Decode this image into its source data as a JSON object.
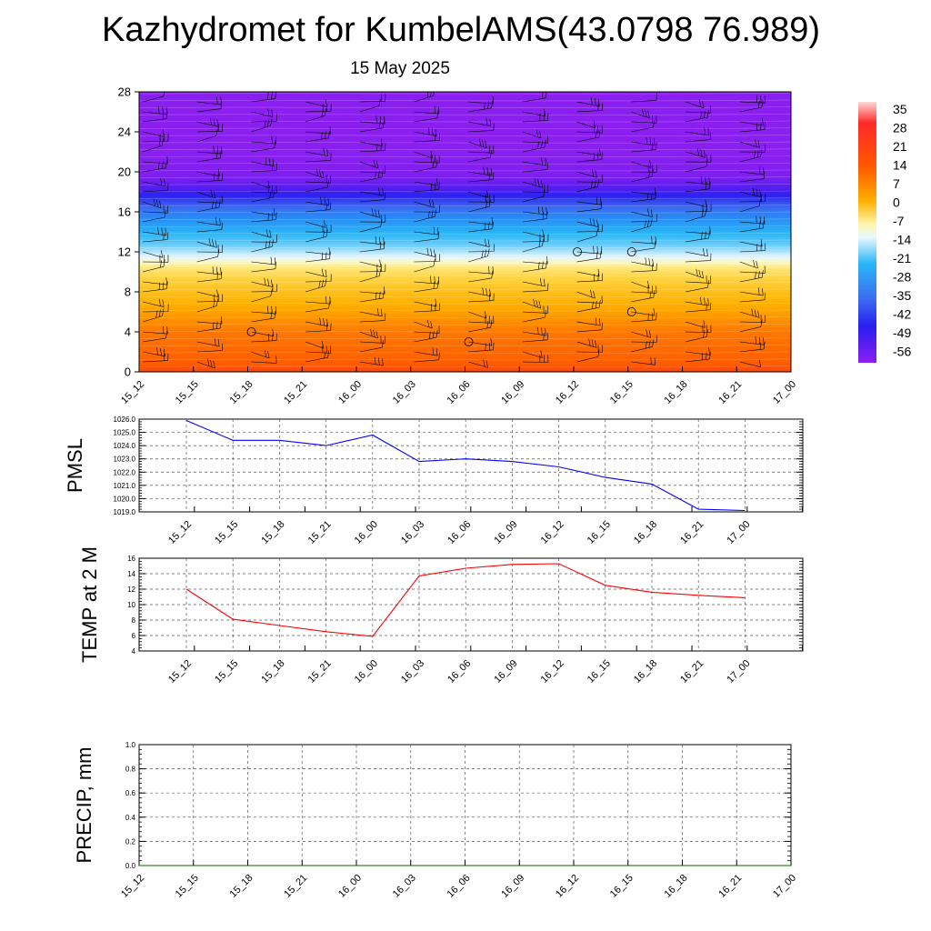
{
  "title": "Kazhydromet for KumbelAMS(43.0798 76.989)",
  "date": "15 May 2025",
  "chart_data": [
    {
      "type": "heatmap",
      "title": "",
      "xlabel": "",
      "ylabel": "",
      "x_tick_labels": [
        "15_12",
        "15_15",
        "15_18",
        "15_21",
        "16_00",
        "16_03",
        "16_06",
        "16_09",
        "16_12",
        "16_15",
        "16_18",
        "16_21",
        "17_00"
      ],
      "y_ticks": [
        0,
        4,
        8,
        12,
        16,
        20,
        24,
        28
      ],
      "ylim": [
        0,
        28
      ],
      "colorbar_labels": [
        "35",
        "28",
        "21",
        "14",
        "7",
        "0",
        "-7",
        "-14",
        "-21",
        "-28",
        "-35",
        "-42",
        "-49",
        "-56"
      ],
      "colorbar_range": [
        -60,
        38
      ],
      "temperature_profile": [
        {
          "level": 0,
          "value": 24
        },
        {
          "level": 1,
          "value": 20
        },
        {
          "level": 4,
          "value": 14
        },
        {
          "level": 8,
          "value": 4
        },
        {
          "level": 10.5,
          "value": -4
        },
        {
          "level": 11.5,
          "value": -14
        },
        {
          "level": 13,
          "value": -24
        },
        {
          "level": 16,
          "value": -38
        },
        {
          "level": 18,
          "value": -52
        },
        {
          "level": 20,
          "value": -58
        },
        {
          "level": 22,
          "value": -60
        },
        {
          "level": 28,
          "value": -60
        }
      ],
      "wind_barbs": "present at every time and level",
      "calm_markers": [
        {
          "x": "15_18",
          "level": 4
        },
        {
          "x": "16_06",
          "level": 3
        },
        {
          "x": "16_12",
          "level": 12
        },
        {
          "x": "16_15",
          "level": 12
        },
        {
          "x": "16_15",
          "level": 6
        }
      ],
      "colors": {
        "line": "#000000"
      }
    },
    {
      "type": "line",
      "ylabel": "PMSL",
      "x": [
        "15_12",
        "15_15",
        "15_18",
        "15_21",
        "16_00",
        "16_03",
        "16_06",
        "16_09",
        "16_12",
        "16_15",
        "16_18",
        "16_21",
        "17_00"
      ],
      "y_ticks": [
        "1026.0",
        "1025.0",
        "1024.0",
        "1023.0",
        "1022.0",
        "1021.0",
        "1020.0",
        "1019.0"
      ],
      "ylim": [
        1019,
        1026
      ],
      "grid": true,
      "series": [
        {
          "values": [
            1025.9,
            1024.4,
            1024.4,
            1024.0,
            1024.8,
            1022.8,
            1023.0,
            1022.8,
            1022.4,
            1021.6,
            1021.1,
            1019.2,
            1019.1
          ],
          "color": "#0000ff"
        }
      ]
    },
    {
      "type": "line",
      "ylabel": "TEMP at 2 M",
      "x": [
        "15_12",
        "15_15",
        "15_18",
        "15_21",
        "16_00",
        "16_03",
        "16_06",
        "16_09",
        "16_12",
        "16_15",
        "16_18",
        "16_21",
        "17_00"
      ],
      "y_ticks": [
        "16",
        "14",
        "12",
        "10",
        "8",
        "6",
        "4"
      ],
      "ylim": [
        4,
        16
      ],
      "grid": true,
      "series": [
        {
          "values": [
            12.0,
            8.1,
            7.3,
            6.5,
            5.9,
            13.7,
            14.7,
            15.2,
            15.3,
            12.5,
            11.6,
            11.2,
            10.9
          ],
          "color": "#ff0000"
        }
      ]
    },
    {
      "type": "line",
      "ylabel": "PRECIP, mm",
      "x": [
        "15_12",
        "15_15",
        "15_18",
        "15_21",
        "16_00",
        "16_03",
        "16_06",
        "16_09",
        "16_12",
        "16_15",
        "16_18",
        "16_21",
        "17_00"
      ],
      "y_ticks": [
        "1.0",
        "0.8",
        "0.6",
        "0.4",
        "0.2",
        "0.0"
      ],
      "ylim": [
        0,
        1
      ],
      "grid": true,
      "series": [
        {
          "values": [
            0,
            0,
            0,
            0,
            0,
            0,
            0,
            0,
            0,
            0,
            0,
            0,
            0
          ],
          "color": "#006400"
        }
      ]
    }
  ]
}
